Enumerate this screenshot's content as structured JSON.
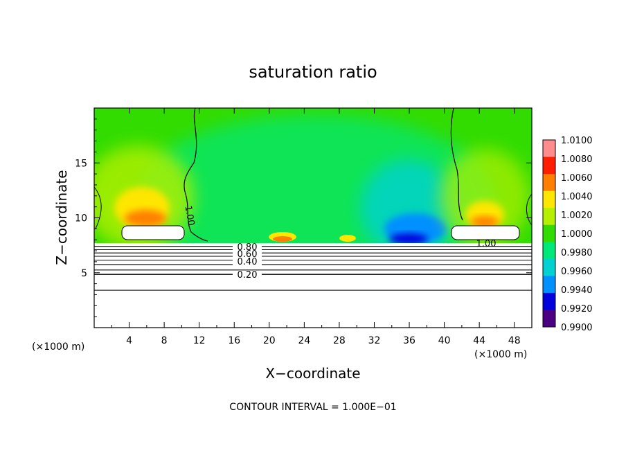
{
  "chart_data": {
    "type": "heatmap",
    "title": "saturation ratio",
    "xlabel": "X−coordinate",
    "ylabel": "Z−coordinate",
    "x_unit_left": "(×1000 m)",
    "x_unit_right": "(×1000 m)",
    "footer": "CONTOUR INTERVAL = 1.000E−01",
    "xlim": [
      0,
      50
    ],
    "ylim": [
      0,
      20
    ],
    "x_ticks": [
      4,
      8,
      12,
      16,
      20,
      24,
      28,
      32,
      36,
      40,
      44,
      48
    ],
    "y_ticks": [
      5,
      10,
      15
    ],
    "grid": false,
    "legend_position": "right",
    "colorbar": {
      "levels": [
        "1.0100",
        "1.0080",
        "1.0060",
        "1.0040",
        "1.0020",
        "1.0000",
        "0.9980",
        "0.9960",
        "0.9940",
        "0.9920",
        "0.9900"
      ],
      "colors": [
        "#ff8c8c",
        "#ff1e00",
        "#ff8000",
        "#ffe600",
        "#b4f000",
        "#32dc00",
        "#00e87a",
        "#00d2d2",
        "#0090ff",
        "#0000dc",
        "#4b0082"
      ]
    },
    "contour_labels": [
      {
        "text": "1.00",
        "x": 9,
        "y": 10.0
      },
      {
        "text": "1.00",
        "x": 44,
        "y": 7.8
      },
      {
        "text": "0.80",
        "x": 14,
        "y": 7.3
      },
      {
        "text": "0.60",
        "x": 14,
        "y": 6.6
      },
      {
        "text": "0.40",
        "x": 14,
        "y": 6.0
      },
      {
        "text": "0.20",
        "x": 14,
        "y": 4.8
      }
    ],
    "contour_lines": [
      {
        "level": 0.9,
        "y": 7.4
      },
      {
        "level": 0.8,
        "y": 7.1
      },
      {
        "level": 0.7,
        "y": 6.8
      },
      {
        "level": 0.6,
        "y": 6.5
      },
      {
        "level": 0.5,
        "y": 6.15
      },
      {
        "level": 0.4,
        "y": 5.75
      },
      {
        "level": 0.3,
        "y": 5.25
      },
      {
        "level": 0.2,
        "y": 4.85
      },
      {
        "level": 0.1,
        "y": 3.4
      }
    ]
  }
}
